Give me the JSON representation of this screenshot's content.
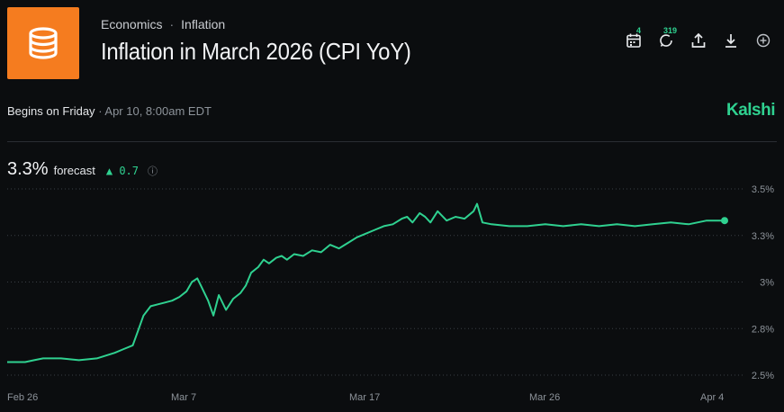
{
  "header": {
    "breadcrumb": [
      "Economics",
      "Inflation"
    ],
    "breadcrumb_sep": "·",
    "title": "Inflation in March 2026 (CPI YoY)",
    "logo_icon": "database-stack-icon",
    "logo_color": "#f57c1f"
  },
  "toolbar": {
    "calendar_badge": "4",
    "comments_badge": "319",
    "icons": [
      "calendar-icon",
      "comments-icon",
      "share-icon",
      "download-icon",
      "add-circle-icon"
    ]
  },
  "meta": {
    "begins_label": "Begins on Friday",
    "begins_detail": "· Apr 10, 8:00am EDT",
    "brand": "Kalshi",
    "accent": "#2fd190"
  },
  "forecast": {
    "value": "3.3%",
    "label": "forecast",
    "delta_arrow": "▲",
    "delta": "0.7",
    "info_icon": "info-icon"
  },
  "chart_data": {
    "type": "line",
    "x_ticks": [
      "Feb 26",
      "Mar 7",
      "Mar 17",
      "Mar 26",
      "Apr 4"
    ],
    "y_ticks": [
      "2.5%",
      "2.8%",
      "3%",
      "3.3%",
      "3.5%"
    ],
    "ylim": [
      2.5,
      3.5
    ],
    "xlim": [
      0,
      40
    ],
    "grid": true,
    "grid_style": "dotted",
    "color": "#2fd190",
    "series": [
      {
        "x": [
          0,
          1,
          1.5,
          2,
          3,
          4,
          5,
          6,
          6.5,
          7,
          7.3,
          7.6,
          8,
          8.4,
          8.8,
          9.2,
          9.6,
          10,
          10.3,
          10.6,
          10.8,
          11.2,
          11.5,
          11.8,
          12.2,
          12.6,
          13,
          13.3,
          13.6,
          14,
          14.3,
          14.6,
          15,
          15.3,
          15.6,
          16,
          16.5,
          17,
          17.5,
          18,
          18.5,
          19,
          19.5,
          20,
          20.5,
          21,
          21.5,
          22,
          22.3,
          22.6,
          23,
          23.3,
          23.6,
          24,
          24.5,
          25,
          25.5,
          26,
          26.2,
          26.5,
          27,
          28,
          29,
          30,
          31,
          32,
          33,
          34,
          35,
          36,
          37,
          38,
          39,
          40
        ],
        "y": [
          2.57,
          2.57,
          2.58,
          2.59,
          2.59,
          2.58,
          2.59,
          2.62,
          2.64,
          2.66,
          2.74,
          2.82,
          2.87,
          2.88,
          2.89,
          2.9,
          2.92,
          2.95,
          3.0,
          3.02,
          2.98,
          2.9,
          2.82,
          2.93,
          2.85,
          2.91,
          2.94,
          2.98,
          3.05,
          3.08,
          3.12,
          3.1,
          3.13,
          3.14,
          3.12,
          3.15,
          3.14,
          3.17,
          3.16,
          3.2,
          3.18,
          3.21,
          3.24,
          3.26,
          3.28,
          3.3,
          3.31,
          3.34,
          3.35,
          3.32,
          3.37,
          3.35,
          3.32,
          3.38,
          3.33,
          3.35,
          3.34,
          3.38,
          3.42,
          3.32,
          3.31,
          3.3,
          3.3,
          3.31,
          3.3,
          3.31,
          3.3,
          3.31,
          3.3,
          3.31,
          3.32,
          3.31,
          3.33,
          3.33
        ]
      }
    ]
  }
}
